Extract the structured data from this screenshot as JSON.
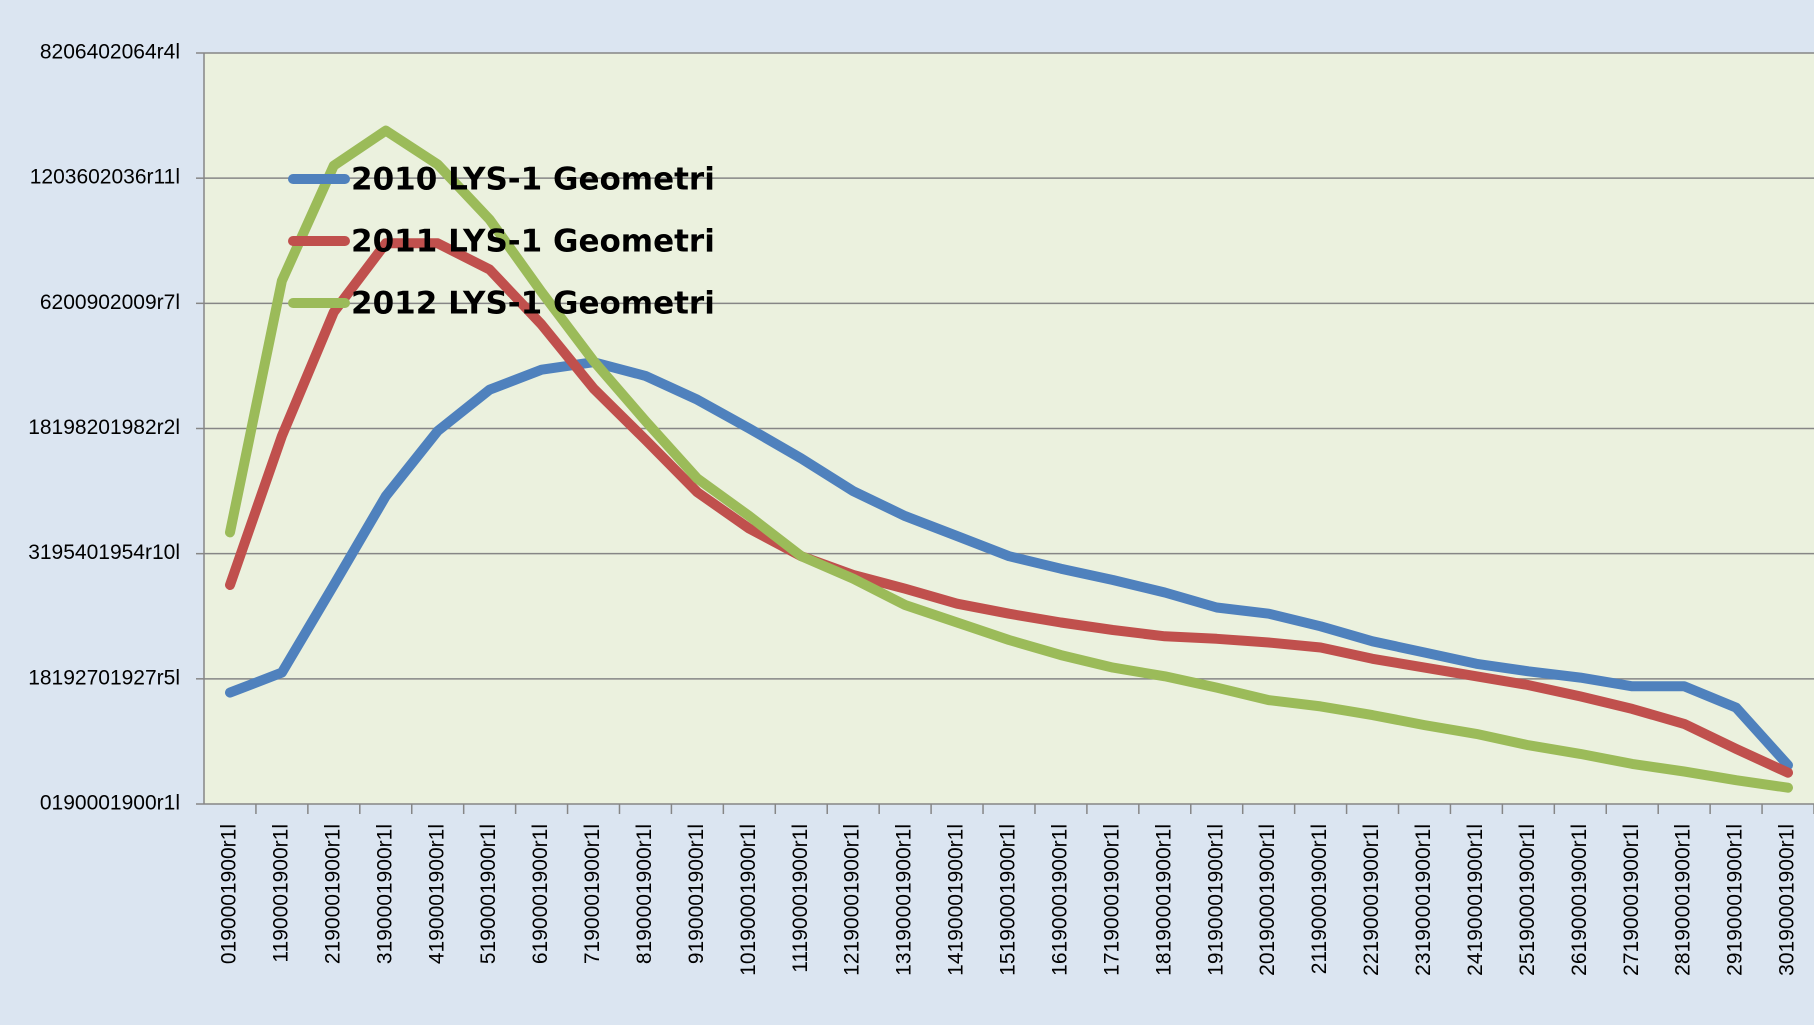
{
  "chart_data": {
    "type": "line",
    "categories": [
      "0190001900r1l",
      "1190001900r1l",
      "2190001900r1l",
      "3190001900r1l",
      "4190001900r1l",
      "5190001900r1l",
      "6190001900r1l",
      "7190001900r1l",
      "8190001900r1l",
      "9190001900r1l",
      "10190001900r1l",
      "11190001900r1l",
      "12190001900r1l",
      "13190001900r1l",
      "14190001900r1l",
      "15190001900r1l",
      "16190001900r1l",
      "17190001900r1l",
      "18190001900r1l",
      "19190001900r1l",
      "20190001900r1l",
      "21190001900r1l",
      "22190001900r1l",
      "23190001900r1l",
      "24190001900r1l",
      "25190001900r1l",
      "26190001900r1l",
      "27190001900r1l",
      "28190001900r1l",
      "29190001900r1l",
      "30190001900r1l"
    ],
    "series": [
      {
        "name": "2010 LYS-1 Geometri",
        "color": "#4f81bd",
        "values": [
          0.89,
          1.05,
          1.75,
          2.46,
          2.98,
          3.31,
          3.47,
          3.53,
          3.42,
          3.23,
          3.0,
          2.76,
          2.5,
          2.3,
          2.14,
          1.98,
          1.88,
          1.79,
          1.69,
          1.57,
          1.52,
          1.42,
          1.3,
          1.21,
          1.12,
          1.06,
          1.01,
          0.94,
          0.94,
          0.77,
          0.31
        ]
      },
      {
        "name": "2011 LYS-1 Geometri",
        "color": "#c0504d",
        "values": [
          1.75,
          2.94,
          3.93,
          4.48,
          4.48,
          4.27,
          3.83,
          3.32,
          2.91,
          2.49,
          2.2,
          1.98,
          1.83,
          1.72,
          1.6,
          1.52,
          1.45,
          1.39,
          1.34,
          1.32,
          1.29,
          1.25,
          1.16,
          1.09,
          1.02,
          0.95,
          0.86,
          0.76,
          0.64,
          0.44,
          0.25
        ]
      },
      {
        "name": "2012 LYS-1 Geometri",
        "color": "#9bbb59",
        "values": [
          2.17,
          4.18,
          5.1,
          5.38,
          5.11,
          4.67,
          4.09,
          3.54,
          3.06,
          2.6,
          2.3,
          1.98,
          1.8,
          1.59,
          1.45,
          1.31,
          1.19,
          1.09,
          1.02,
          0.93,
          0.83,
          0.78,
          0.71,
          0.63,
          0.56,
          0.47,
          0.4,
          0.32,
          0.26,
          0.19,
          0.13
        ]
      }
    ],
    "ylim": [
      0,
      6
    ],
    "yticks": [
      {
        "value": 0,
        "label": "0190001900r1l"
      },
      {
        "value": 1,
        "label": "18192701927r5l"
      },
      {
        "value": 2,
        "label": "3195401954r10l"
      },
      {
        "value": 3,
        "label": "18198201982r2l"
      },
      {
        "value": 4,
        "label": "6200902009r7l"
      },
      {
        "value": 5,
        "label": "1203602036r11l"
      },
      {
        "value": 6,
        "label": "8206402064r4l"
      }
    ],
    "grid": true,
    "legend": "upper left"
  }
}
